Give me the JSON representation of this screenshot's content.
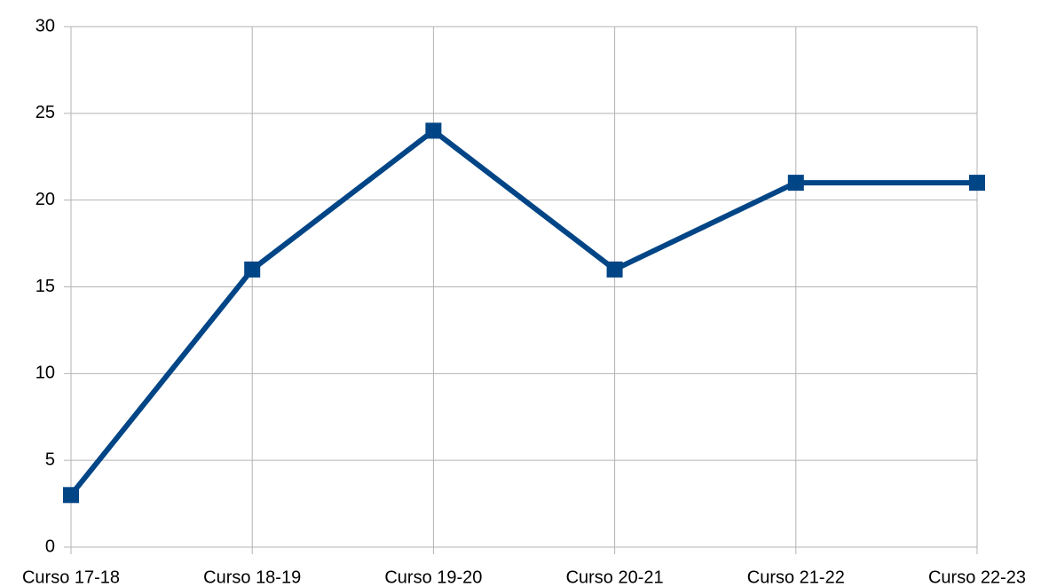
{
  "chart_data": {
    "type": "line",
    "categories": [
      "Curso 17-18",
      "Curso 18-19",
      "Curso 19-20",
      "Curso 20-21",
      "Curso 21-22",
      "Curso 22-23"
    ],
    "values": [
      3,
      16,
      24,
      16,
      21,
      21
    ],
    "color": "#004586",
    "ylim": [
      0,
      30
    ],
    "yticks": [
      0,
      5,
      10,
      15,
      20,
      25,
      30
    ],
    "grid": true,
    "marker": "square"
  }
}
